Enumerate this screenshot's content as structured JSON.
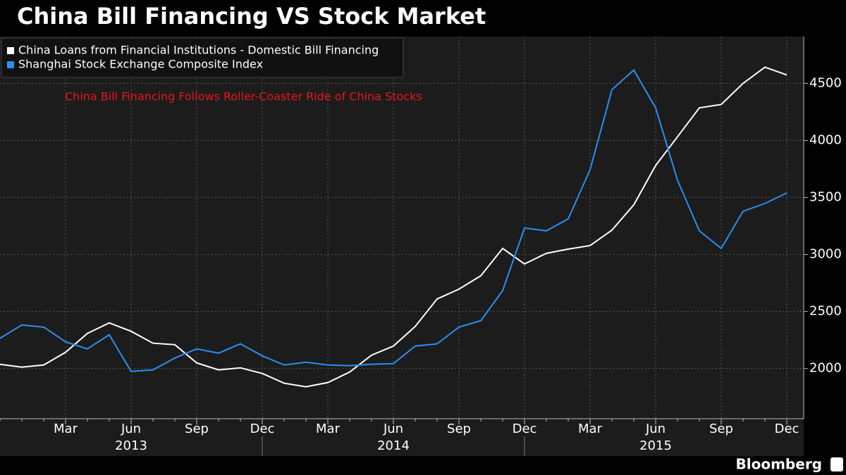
{
  "chart_data": {
    "type": "line",
    "title": "China Bill Financing VS Stock Market",
    "annotation": "China Bill Financing Follows Roller-Coaster Ride of China Stocks",
    "source": "Bloomberg",
    "categories": [
      null,
      null,
      null,
      "Mar",
      null,
      null,
      "Jun",
      null,
      null,
      "Sep",
      null,
      null,
      "Dec",
      null,
      null,
      "Mar",
      null,
      null,
      "Jun",
      null,
      null,
      "Sep",
      null,
      null,
      "Dec",
      null,
      null,
      "Mar",
      null,
      null,
      "Jun",
      null,
      null,
      "Sep",
      null,
      null,
      "Dec"
    ],
    "year_labels": [
      "2013",
      "2014",
      "2015"
    ],
    "series": [
      {
        "name": "China Loans from Financial Institutions - Domestic Bill Financing",
        "color": "#ffffff",
        "values": [
          2037,
          2012,
          2031,
          2142,
          2308,
          2400,
          2326,
          2222,
          2209,
          2049,
          1988,
          2006,
          1957,
          1871,
          1840,
          1877,
          1969,
          2117,
          2197,
          2369,
          2610,
          2696,
          2813,
          3053,
          2917,
          3010,
          3047,
          3078,
          3213,
          3435,
          3780,
          4032,
          4285,
          4315,
          4500,
          4642,
          4574
        ]
      },
      {
        "name": "Shanghai Stock Exchange Composite Index",
        "color": "#2b8ef0",
        "values": [
          2265,
          2382,
          2363,
          2234,
          2172,
          2296,
          1975,
          1988,
          2092,
          2172,
          2135,
          2216,
          2111,
          2031,
          2055,
          2031,
          2025,
          2037,
          2043,
          2197,
          2216,
          2363,
          2419,
          2683,
          3232,
          3207,
          3312,
          3743,
          4445,
          4617,
          4285,
          3650,
          3207,
          3053,
          3379,
          3447,
          3539
        ]
      }
    ],
    "ylim": [
      1560,
      4910
    ],
    "yticks": [
      2000,
      2500,
      3000,
      3500,
      4000,
      4500
    ],
    "grid": true,
    "legend": "upper left"
  }
}
